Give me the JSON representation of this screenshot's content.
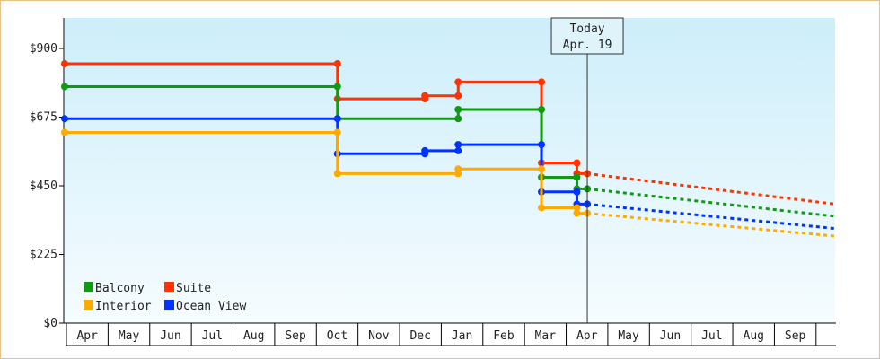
{
  "chart_data": {
    "type": "line",
    "y_ticks": [
      {
        "value": 0,
        "label": "$0"
      },
      {
        "value": 225,
        "label": "$225"
      },
      {
        "value": 450,
        "label": "$450"
      },
      {
        "value": 675,
        "label": "$675"
      },
      {
        "value": 900,
        "label": "$900"
      }
    ],
    "ylim": [
      0,
      1000
    ],
    "xlim": [
      0,
      18.5
    ],
    "months": [
      "Apr",
      "May",
      "Jun",
      "Jul",
      "Aug",
      "Sep",
      "Oct",
      "Nov",
      "Dec",
      "Jan",
      "Feb",
      "Mar",
      "Apr",
      "May",
      "Jun",
      "Jul",
      "Aug",
      "Sep"
    ],
    "today": {
      "label": "Today",
      "date": "Apr. 19",
      "x": 12.55
    },
    "series": [
      {
        "name": "Suite",
        "color": "#ff3300",
        "values": [
          {
            "x": 0.0,
            "y": 850
          },
          {
            "x": 6.55,
            "y": 850
          },
          {
            "x": 6.55,
            "y": 735
          },
          {
            "x": 8.65,
            "y": 735
          },
          {
            "x": 8.65,
            "y": 745
          },
          {
            "x": 9.45,
            "y": 745
          },
          {
            "x": 9.45,
            "y": 790
          },
          {
            "x": 11.45,
            "y": 790
          },
          {
            "x": 11.45,
            "y": 525
          },
          {
            "x": 12.3,
            "y": 525
          },
          {
            "x": 12.3,
            "y": 490
          },
          {
            "x": 12.55,
            "y": 490
          }
        ],
        "forecast": [
          {
            "x": 12.55,
            "y": 490
          },
          {
            "x": 18.5,
            "y": 390
          }
        ]
      },
      {
        "name": "Balcony",
        "color": "#119911",
        "values": [
          {
            "x": 0.0,
            "y": 775
          },
          {
            "x": 6.55,
            "y": 775
          },
          {
            "x": 6.55,
            "y": 670
          },
          {
            "x": 9.45,
            "y": 670
          },
          {
            "x": 9.45,
            "y": 700
          },
          {
            "x": 11.45,
            "y": 700
          },
          {
            "x": 11.45,
            "y": 478
          },
          {
            "x": 12.3,
            "y": 478
          },
          {
            "x": 12.3,
            "y": 440
          },
          {
            "x": 12.55,
            "y": 440
          }
        ],
        "forecast": [
          {
            "x": 12.55,
            "y": 440
          },
          {
            "x": 18.5,
            "y": 350
          }
        ]
      },
      {
        "name": "Ocean View",
        "color": "#0033ff",
        "values": [
          {
            "x": 0.0,
            "y": 670
          },
          {
            "x": 6.55,
            "y": 670
          },
          {
            "x": 6.55,
            "y": 555
          },
          {
            "x": 8.65,
            "y": 555
          },
          {
            "x": 8.65,
            "y": 565
          },
          {
            "x": 9.45,
            "y": 565
          },
          {
            "x": 9.45,
            "y": 585
          },
          {
            "x": 11.45,
            "y": 585
          },
          {
            "x": 11.45,
            "y": 430
          },
          {
            "x": 12.3,
            "y": 430
          },
          {
            "x": 12.3,
            "y": 390
          },
          {
            "x": 12.55,
            "y": 390
          }
        ],
        "forecast": [
          {
            "x": 12.55,
            "y": 390
          },
          {
            "x": 18.5,
            "y": 310
          }
        ]
      },
      {
        "name": "Interior",
        "color": "#ffaa00",
        "values": [
          {
            "x": 0.0,
            "y": 625
          },
          {
            "x": 6.55,
            "y": 625
          },
          {
            "x": 6.55,
            "y": 490
          },
          {
            "x": 9.45,
            "y": 490
          },
          {
            "x": 9.45,
            "y": 505
          },
          {
            "x": 11.45,
            "y": 505
          },
          {
            "x": 11.45,
            "y": 378
          },
          {
            "x": 12.3,
            "y": 378
          },
          {
            "x": 12.3,
            "y": 360
          },
          {
            "x": 12.55,
            "y": 360
          }
        ],
        "forecast": [
          {
            "x": 12.55,
            "y": 360
          },
          {
            "x": 18.5,
            "y": 285
          }
        ]
      }
    ],
    "legend": [
      {
        "name": "Balcony",
        "color": "#119911"
      },
      {
        "name": "Suite",
        "color": "#ff3300"
      },
      {
        "name": "Interior",
        "color": "#ffaa00"
      },
      {
        "name": "Ocean View",
        "color": "#0033ff"
      }
    ],
    "legend_position": "bottom-left",
    "grid": false
  }
}
